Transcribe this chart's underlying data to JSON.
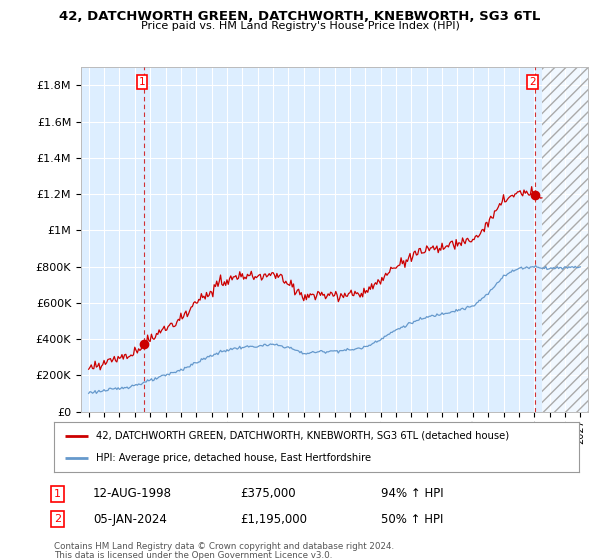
{
  "title": "42, DATCHWORTH GREEN, DATCHWORTH, KNEBWORTH, SG3 6TL",
  "subtitle": "Price paid vs. HM Land Registry's House Price Index (HPI)",
  "ylim": [
    0,
    1900000
  ],
  "yticks": [
    0,
    200000,
    400000,
    600000,
    800000,
    1000000,
    1200000,
    1400000,
    1600000,
    1800000
  ],
  "ytick_labels": [
    "£0",
    "£200K",
    "£400K",
    "£600K",
    "£800K",
    "£1M",
    "£1.2M",
    "£1.4M",
    "£1.6M",
    "£1.8M"
  ],
  "hpi_color": "#6699cc",
  "price_color": "#cc0000",
  "sale1_year": 1998.62,
  "sale1_price": 375000,
  "sale2_year": 2024.03,
  "sale2_price": 1195000,
  "legend_property": "42, DATCHWORTH GREEN, DATCHWORTH, KNEBWORTH, SG3 6TL (detached house)",
  "legend_hpi": "HPI: Average price, detached house, East Hertfordshire",
  "sale1_date": "12-AUG-1998",
  "sale1_hpi_pct": "94%",
  "sale2_date": "05-JAN-2024",
  "sale2_hpi_pct": "50%",
  "footnote1": "Contains HM Land Registry data © Crown copyright and database right 2024.",
  "footnote2": "This data is licensed under the Open Government Licence v3.0.",
  "background_color": "#ffffff",
  "plot_bg_color": "#ddeeff",
  "grid_color": "#ffffff"
}
